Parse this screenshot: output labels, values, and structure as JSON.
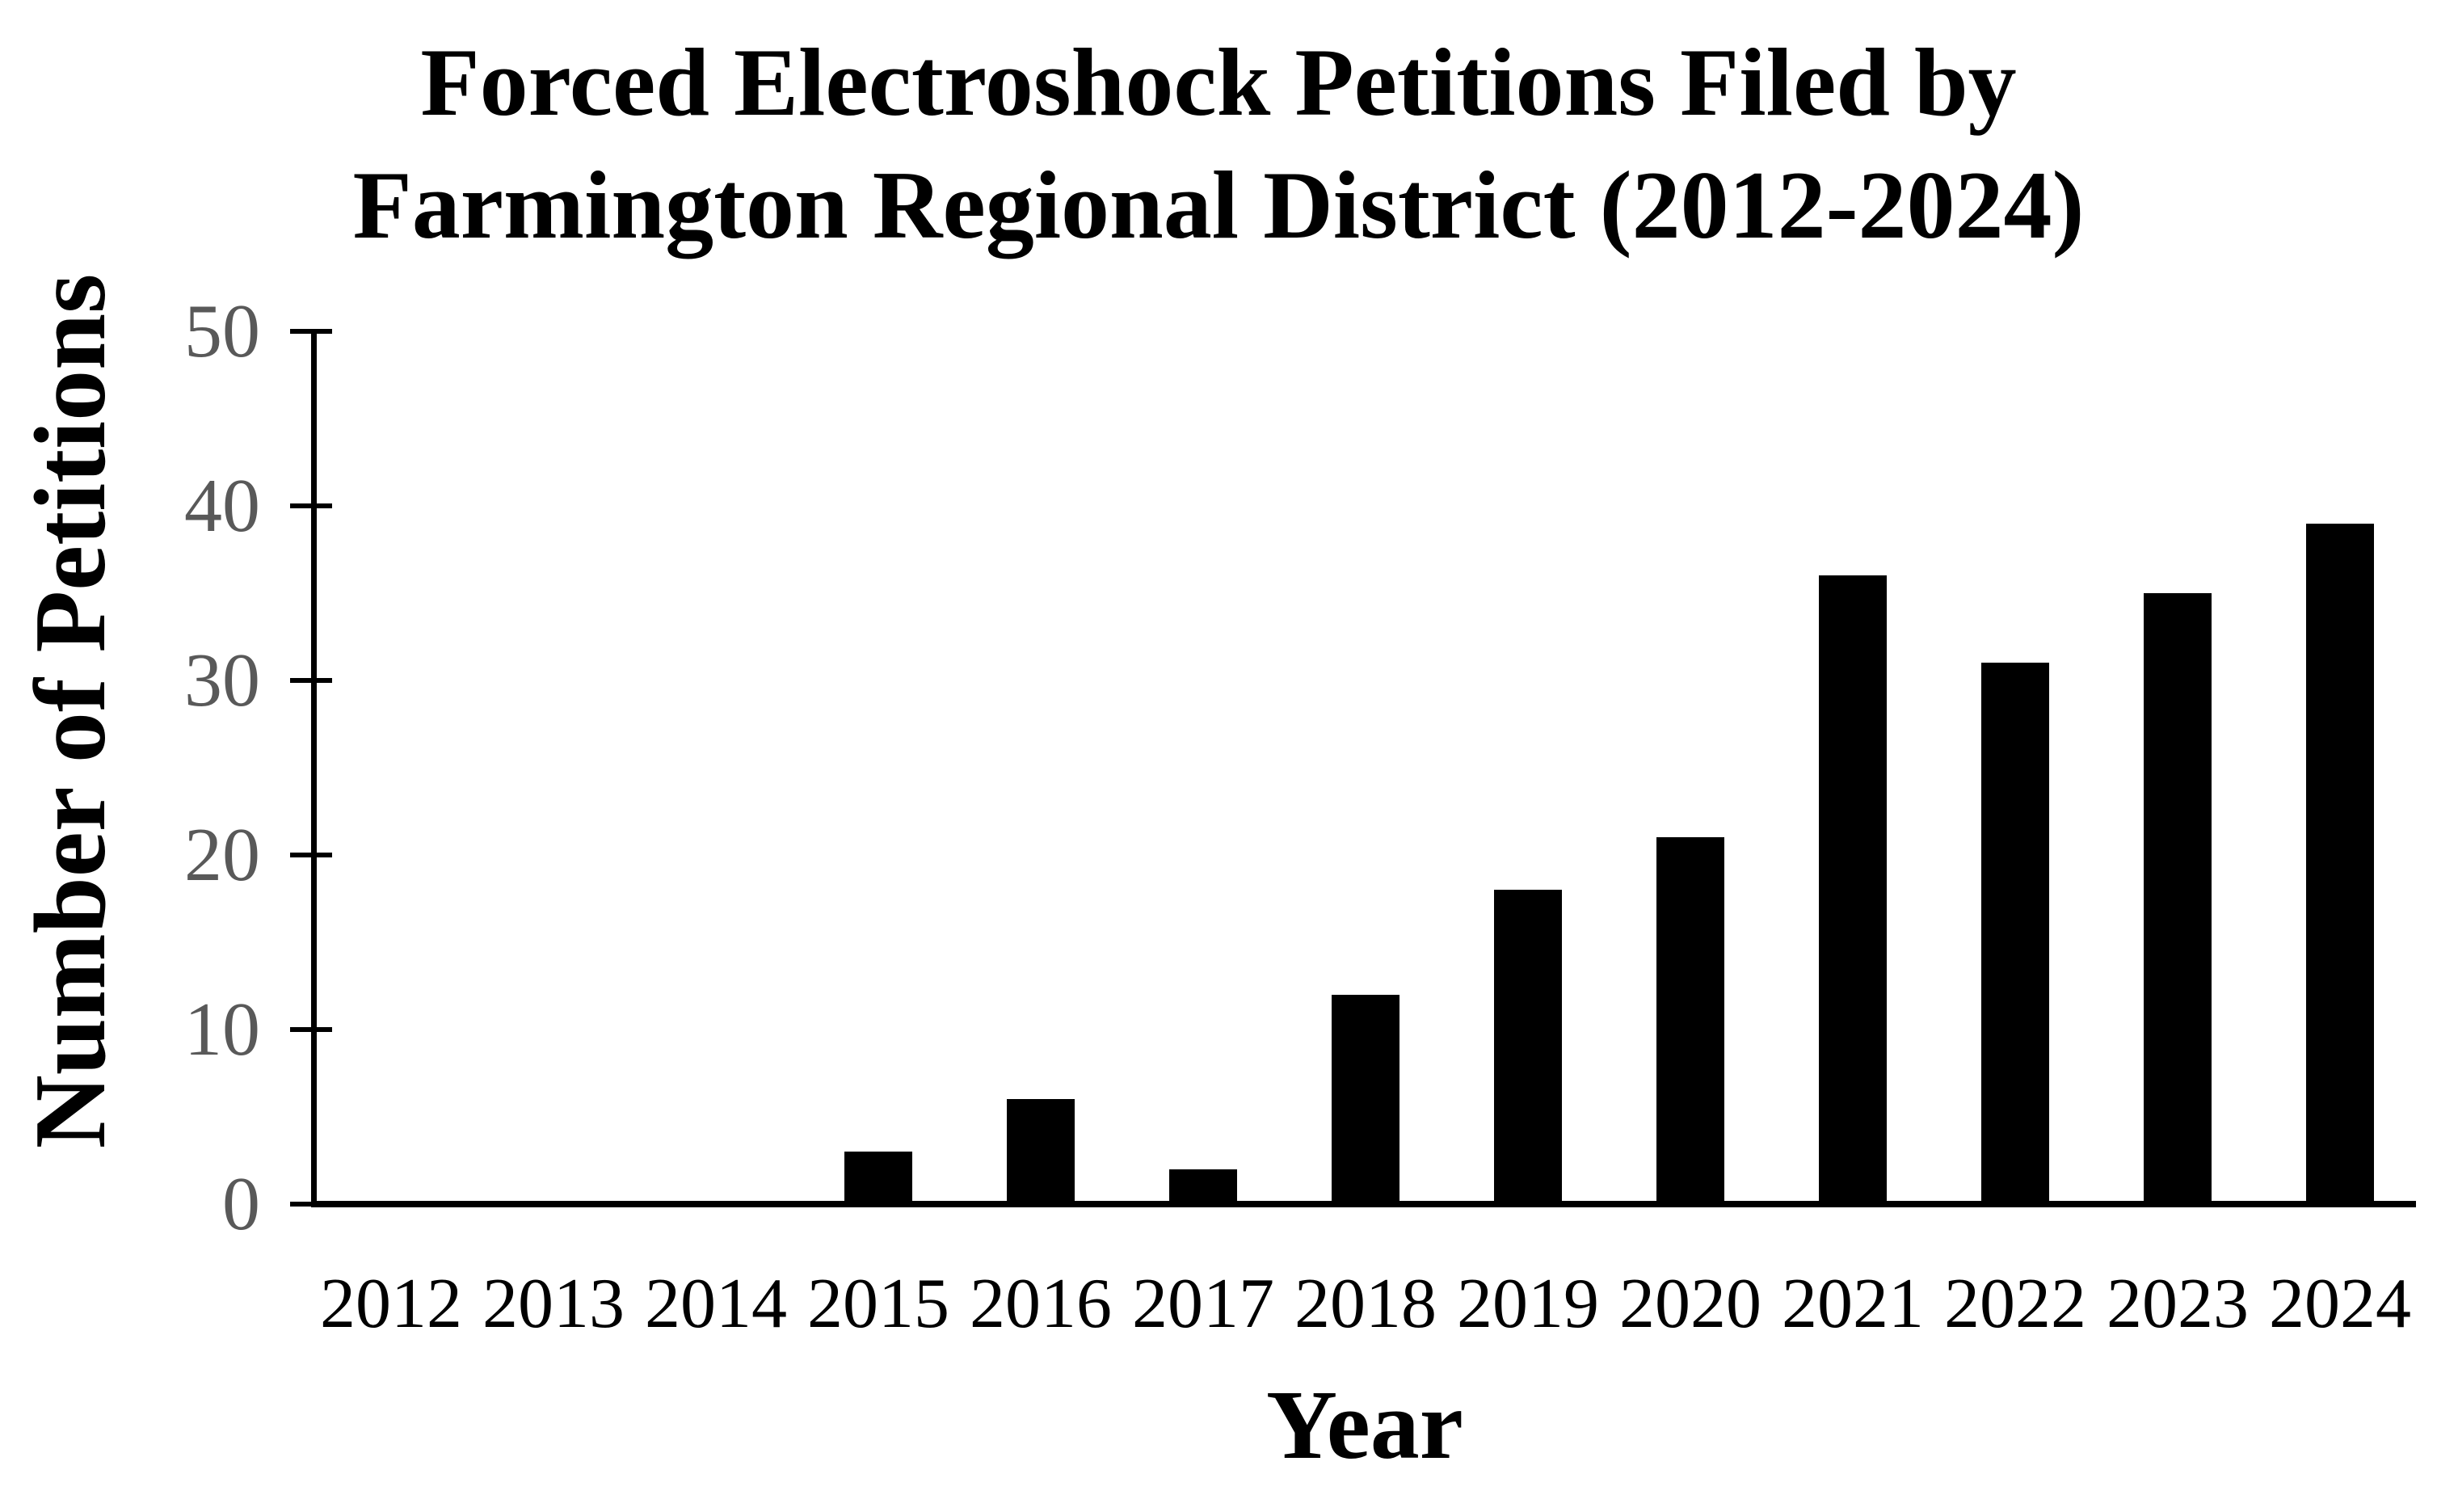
{
  "title": {
    "line1": "Forced Electroshock Petitions Filed by",
    "line2": "Farmington Regional District (2012-2024)"
  },
  "chart_data": {
    "type": "bar",
    "title": "Forced Electroshock Petitions Filed by Farmington Regional District (2012-2024)",
    "categories": [
      "2012",
      "2013",
      "2014",
      "2015",
      "2016",
      "2017",
      "2018",
      "2019",
      "2020",
      "2021",
      "2022",
      "2023",
      "2024"
    ],
    "values": [
      0,
      0,
      0,
      3,
      6,
      2,
      12,
      18,
      21,
      36,
      31,
      35,
      39
    ],
    "xlabel": "Year",
    "ylabel": "Number of Petitions",
    "ylim": [
      0,
      50
    ],
    "yticks": [
      0,
      10,
      20,
      30,
      40,
      50
    ],
    "grid": false,
    "legend": false,
    "bar_color": "#000000",
    "axis_color": "#000000",
    "tick_label_color": "#595959",
    "text_color": "#000000"
  }
}
